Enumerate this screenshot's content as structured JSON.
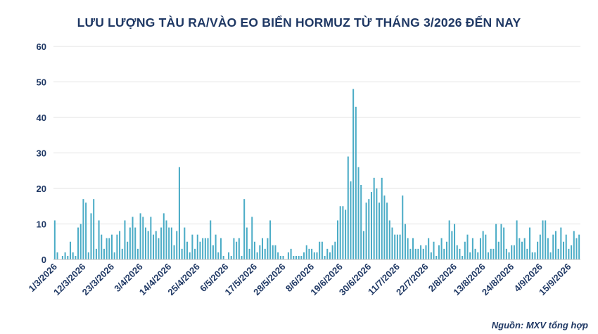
{
  "chart_data": {
    "type": "bar",
    "title": "LƯU LƯỢNG TÀU RA/VÀO EO BIỂN HORMUZ TỪ THÁNG 3/2026 ĐẾN NAY",
    "xlabel": "",
    "ylabel": "",
    "ylim": [
      0,
      60
    ],
    "yticks": [
      "0",
      "10",
      "20",
      "30",
      "40",
      "50",
      "60"
    ],
    "x_tick_labels": [
      "1/3/2026",
      "12/3/2026",
      "23/3/2026",
      "3/4/2026",
      "14/4/2026",
      "25/4/2026",
      "6/5/2026",
      "17/5/2026",
      "28/5/2026",
      "8/6/2026",
      "19/6/2026",
      "30/6/2026",
      "11/7/2026",
      "22/7/2026",
      "2/8/2026",
      "13/8/2026",
      "24/8/2026",
      "4/9/2026",
      "15/9/2026"
    ],
    "grid": true,
    "bar_color": "#4bacc6",
    "values": [
      11,
      2,
      0,
      1,
      2,
      1,
      5,
      2,
      1,
      9,
      10,
      17,
      16,
      2,
      13,
      17,
      3,
      11,
      7,
      3,
      6,
      6,
      7,
      2,
      7,
      8,
      3,
      11,
      5,
      9,
      12,
      9,
      3,
      13,
      12,
      9,
      8,
      12,
      7,
      8,
      6,
      9,
      13,
      11,
      9,
      9,
      4,
      8,
      26,
      3,
      9,
      5,
      2,
      7,
      3,
      7,
      5,
      6,
      6,
      6,
      11,
      4,
      7,
      2,
      6,
      1,
      0,
      2,
      1,
      6,
      5,
      6,
      1,
      17,
      9,
      3,
      12,
      5,
      2,
      4,
      6,
      3,
      6,
      11,
      4,
      4,
      2,
      1,
      1,
      0,
      2,
      3,
      1,
      1,
      1,
      1,
      2,
      4,
      3,
      3,
      2,
      2,
      5,
      5,
      1,
      3,
      2,
      4,
      5,
      11,
      15,
      15,
      14,
      29,
      22,
      48,
      43,
      26,
      21,
      8,
      16,
      17,
      19,
      23,
      20,
      16,
      23,
      18,
      16,
      11,
      9,
      7,
      7,
      7,
      18,
      10,
      6,
      3,
      6,
      3,
      3,
      4,
      3,
      4,
      6,
      2,
      5,
      1,
      4,
      6,
      3,
      5,
      11,
      8,
      10,
      4,
      3,
      1,
      5,
      7,
      2,
      6,
      3,
      2,
      6,
      8,
      7,
      2,
      3,
      3,
      10,
      5,
      10,
      9,
      3,
      2,
      4,
      4,
      11,
      6,
      5,
      6,
      3,
      9,
      2,
      2,
      5,
      7,
      11,
      11,
      6,
      2,
      7,
      8,
      3,
      9,
      5,
      7,
      3,
      4,
      8,
      6,
      7
    ]
  },
  "source_text": "Nguồn: MXV tổng hợp"
}
